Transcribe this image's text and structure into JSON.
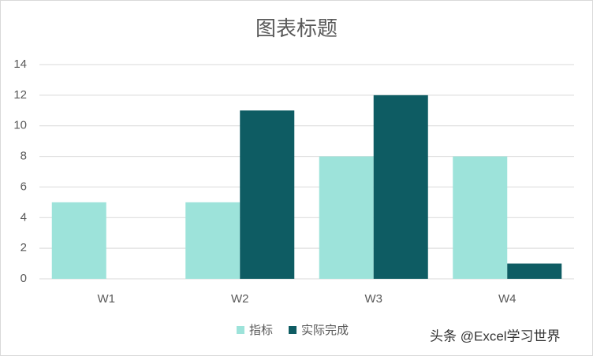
{
  "chart_data": {
    "type": "bar",
    "title": "图表标题",
    "categories": [
      "W1",
      "W2",
      "W3",
      "W4"
    ],
    "series": [
      {
        "name": "指标",
        "color": "#9de3da",
        "values": [
          5,
          5,
          8,
          8
        ]
      },
      {
        "name": "实际完成",
        "color": "#0e5c63",
        "values": [
          0,
          11,
          12,
          1
        ]
      }
    ],
    "ylim": [
      0,
      14
    ],
    "yticks": [
      0,
      2,
      4,
      6,
      8,
      10,
      12,
      14
    ],
    "grid": true,
    "legend": "bottom",
    "watermark": "头条 @Excel学习世界"
  }
}
